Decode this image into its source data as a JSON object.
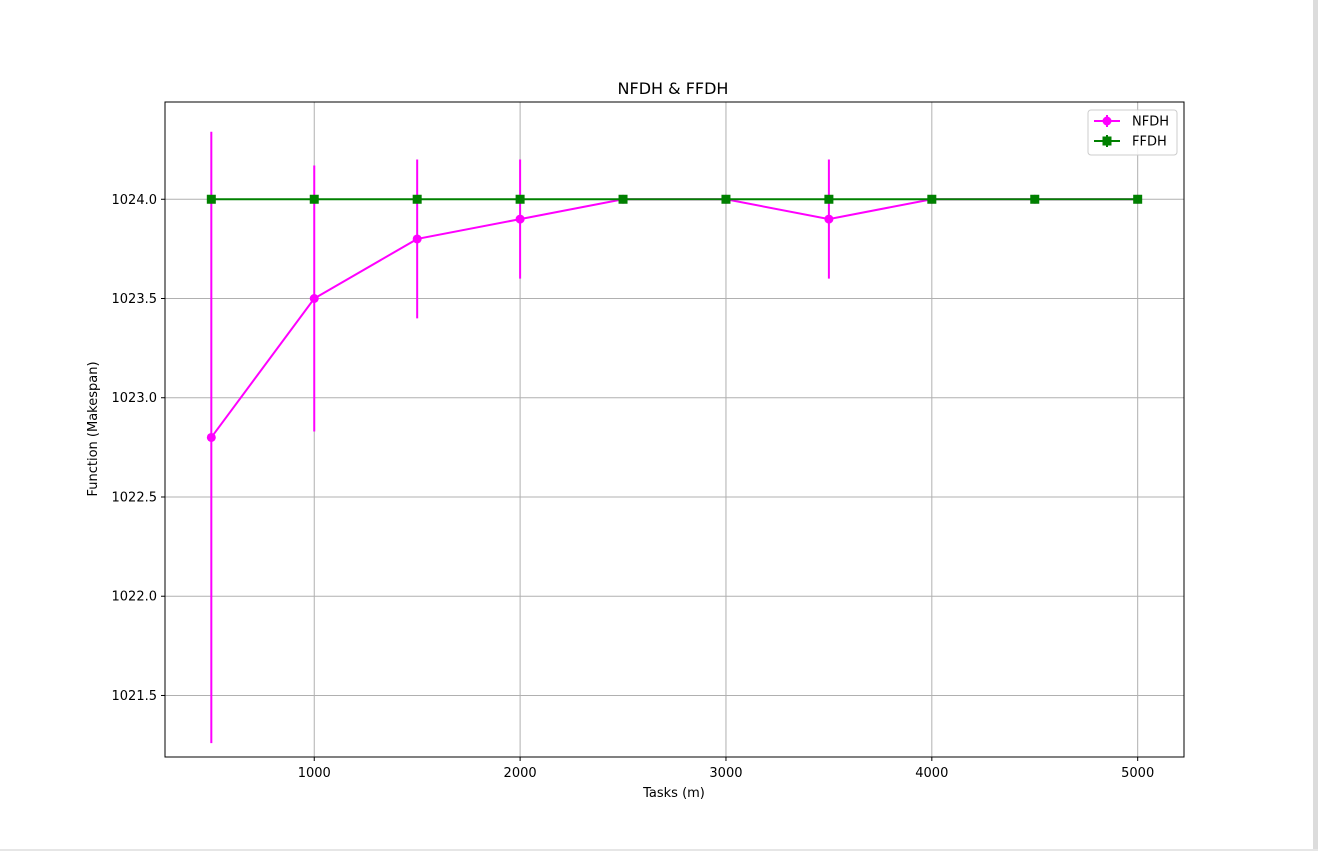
{
  "chart_data": {
    "type": "line",
    "title": "NFDH & FFDH",
    "xlabel": "Tasks (m)",
    "ylabel": "Function (Makespan)",
    "xlim": [
      275,
      5225
    ],
    "ylim": [
      1021.19,
      1024.49
    ],
    "xticks": [
      1000,
      2000,
      3000,
      4000,
      5000
    ],
    "xtick_labels": [
      "1000",
      "2000",
      "3000",
      "4000",
      "5000"
    ],
    "yticks": [
      1021.5,
      1022.0,
      1022.5,
      1023.0,
      1023.5,
      1024.0
    ],
    "ytick_labels": [
      "1021.5",
      "1022.0",
      "1022.5",
      "1023.0",
      "1023.5",
      "1024.0"
    ],
    "grid": true,
    "legend_position": "top-right",
    "series": [
      {
        "name": "NFDH",
        "color": "#ff00ff",
        "marker": "circle",
        "x": [
          500,
          1000,
          1500,
          2000,
          2500,
          3000,
          3500,
          4000,
          4500,
          5000
        ],
        "y": [
          1022.8,
          1023.5,
          1023.8,
          1023.9,
          1024.0,
          1024.0,
          1023.9,
          1024.0,
          1024.0,
          1024.0
        ],
        "yerr": [
          1.54,
          0.67,
          0.4,
          0.3,
          0.0,
          0.0,
          0.3,
          0.0,
          0.0,
          0.0
        ]
      },
      {
        "name": "FFDH",
        "color": "#008000",
        "marker": "square",
        "x": [
          500,
          1000,
          1500,
          2000,
          2500,
          3000,
          3500,
          4000,
          4500,
          5000
        ],
        "y": [
          1024.0,
          1024.0,
          1024.0,
          1024.0,
          1024.0,
          1024.0,
          1024.0,
          1024.0,
          1024.0,
          1024.0
        ],
        "yerr": [
          0,
          0,
          0,
          0,
          0,
          0,
          0,
          0,
          0,
          0
        ]
      }
    ]
  }
}
